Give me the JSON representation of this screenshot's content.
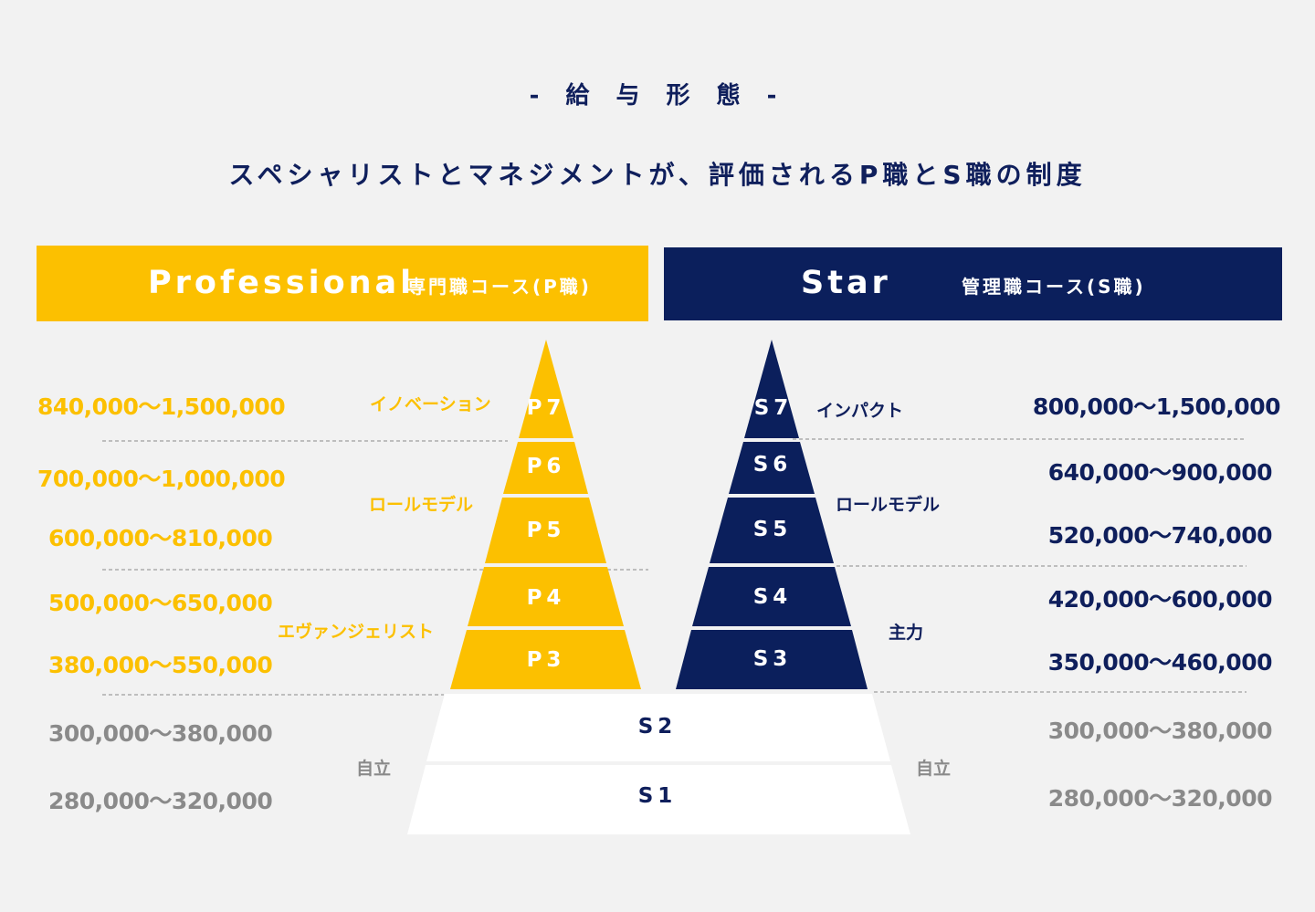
{
  "section_label": "- 給 与 形 態 -",
  "headline": "スペシャリストとマネジメントが、評価されるP職とS職の制度",
  "colors": {
    "professional": "#fcc000",
    "star": "#0b1f5c",
    "shared": "#ffffff",
    "neutral_text": "#8a8a8a"
  },
  "professional": {
    "title": "Professional",
    "subtitle": "専門職コース(P職)",
    "grades": [
      "P7",
      "P6",
      "P5",
      "P4",
      "P3"
    ],
    "categories": {
      "innovation": "イノベーション",
      "role_model": "ロールモデル",
      "evangelist": "エヴァンジェリスト",
      "independent": "自立"
    },
    "salaries": {
      "p7": "840,000〜1,500,000",
      "p6": "700,000〜1,000,000",
      "p5": "600,000〜810,000",
      "p4": "500,000〜650,000",
      "p3": "380,000〜550,000",
      "s2": "300,000〜380,000",
      "s1": "280,000〜320,000"
    }
  },
  "star": {
    "title": "Star",
    "subtitle": "管理職コース(S職)",
    "grades": [
      "S7",
      "S6",
      "S5",
      "S4",
      "S3"
    ],
    "categories": {
      "impact": "インパクト",
      "role_model": "ロールモデル",
      "core": "主力",
      "independent": "自立"
    },
    "salaries": {
      "s7": "800,000〜1,500,000",
      "s6": "640,000〜900,000",
      "s5": "520,000〜740,000",
      "s4": "420,000〜600,000",
      "s3": "350,000〜460,000",
      "s2": "300,000〜380,000",
      "s1": "280,000〜320,000"
    }
  },
  "shared_grades": [
    "S2",
    "S1"
  ]
}
